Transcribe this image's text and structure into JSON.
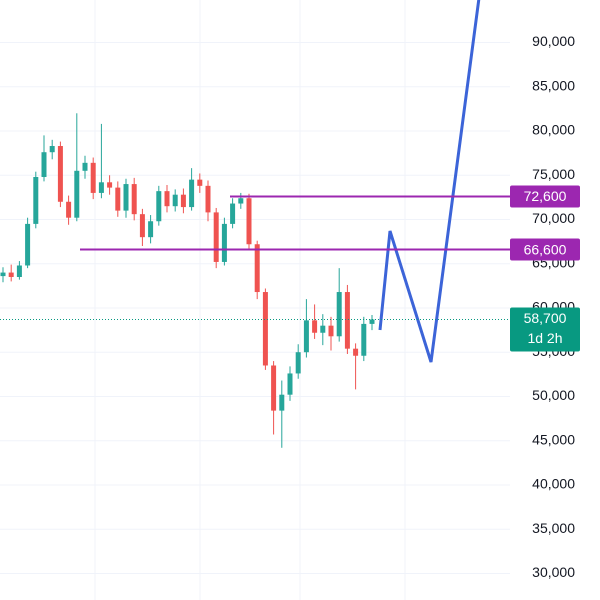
{
  "chart_data": {
    "type": "candlestick",
    "ylim": [
      27000,
      94800
    ],
    "yticks": [
      {
        "value": 30000,
        "label": "30,000"
      },
      {
        "value": 35000,
        "label": "35,000"
      },
      {
        "value": 40000,
        "label": "40,000"
      },
      {
        "value": 45000,
        "label": "45,000"
      },
      {
        "value": 50000,
        "label": "50,000"
      },
      {
        "value": 55000,
        "label": "55,000"
      },
      {
        "value": 60000,
        "label": "60,000"
      },
      {
        "value": 65000,
        "label": "65,000"
      },
      {
        "value": 70000,
        "label": "70,000"
      },
      {
        "value": 75000,
        "label": "75,000"
      },
      {
        "value": 80000,
        "label": "80,000"
      },
      {
        "value": 85000,
        "label": "85,000"
      },
      {
        "value": 90000,
        "label": "90,000"
      }
    ],
    "grid": true,
    "up_color": "#26a69a",
    "down_color": "#ef5350",
    "open": [
      63600,
      64000,
      63500,
      64800,
      69500,
      74800,
      77600,
      78300,
      72000,
      70200,
      75500,
      76400,
      73000,
      74200,
      73600,
      71000,
      74000,
      70600,
      68000,
      69800,
      73200,
      71500,
      72800,
      71400,
      74500,
      73800,
      70800,
      65200,
      69500,
      71800,
      72400,
      67200,
      61800,
      53500,
      48400,
      50200,
      52600,
      55000,
      58600,
      57200,
      58000,
      56800,
      61800,
      55400,
      54600,
      58200
    ],
    "high": [
      64600,
      64900,
      65300,
      70200,
      75400,
      79500,
      79000,
      78800,
      72700,
      82000,
      77200,
      77000,
      80800,
      75000,
      74300,
      74600,
      74700,
      71200,
      70500,
      73800,
      73900,
      73400,
      73500,
      75800,
      75200,
      74400,
      71300,
      70200,
      72400,
      73000,
      72900,
      67600,
      62200,
      54000,
      51800,
      53400,
      55900,
      61000,
      60400,
      59300,
      59000,
      64500,
      62600,
      56000,
      59000,
      59200
    ],
    "low": [
      62900,
      63000,
      63200,
      64500,
      69000,
      74300,
      76800,
      71400,
      69400,
      69800,
      74600,
      72300,
      72400,
      72800,
      70300,
      70200,
      69900,
      67000,
      67300,
      69300,
      70800,
      70900,
      70700,
      71000,
      73000,
      69800,
      64500,
      64800,
      69000,
      71200,
      66500,
      61000,
      53000,
      45700,
      44200,
      49500,
      52000,
      54400,
      56500,
      55800,
      55200,
      56200,
      54800,
      50800,
      54000,
      57500
    ],
    "close": [
      64000,
      63500,
      64800,
      69500,
      74800,
      77600,
      78300,
      72000,
      70200,
      75500,
      76400,
      73000,
      74200,
      73600,
      71000,
      74000,
      70600,
      68000,
      69800,
      73200,
      71500,
      72800,
      71400,
      74500,
      73800,
      70800,
      65200,
      69500,
      71800,
      72400,
      67200,
      61800,
      53500,
      48400,
      50200,
      52600,
      55000,
      58600,
      57200,
      58000,
      56800,
      61800,
      55400,
      54600,
      58200,
      58700
    ],
    "levels": [
      {
        "value": 72600,
        "label": "72,600",
        "color": "#9c27b0"
      },
      {
        "value": 66600,
        "label": "66,600",
        "color": "#9c27b0"
      }
    ],
    "current_price": {
      "value": 58700,
      "label": "58,700",
      "color": "#089981"
    },
    "countdown": "1d 2h"
  }
}
